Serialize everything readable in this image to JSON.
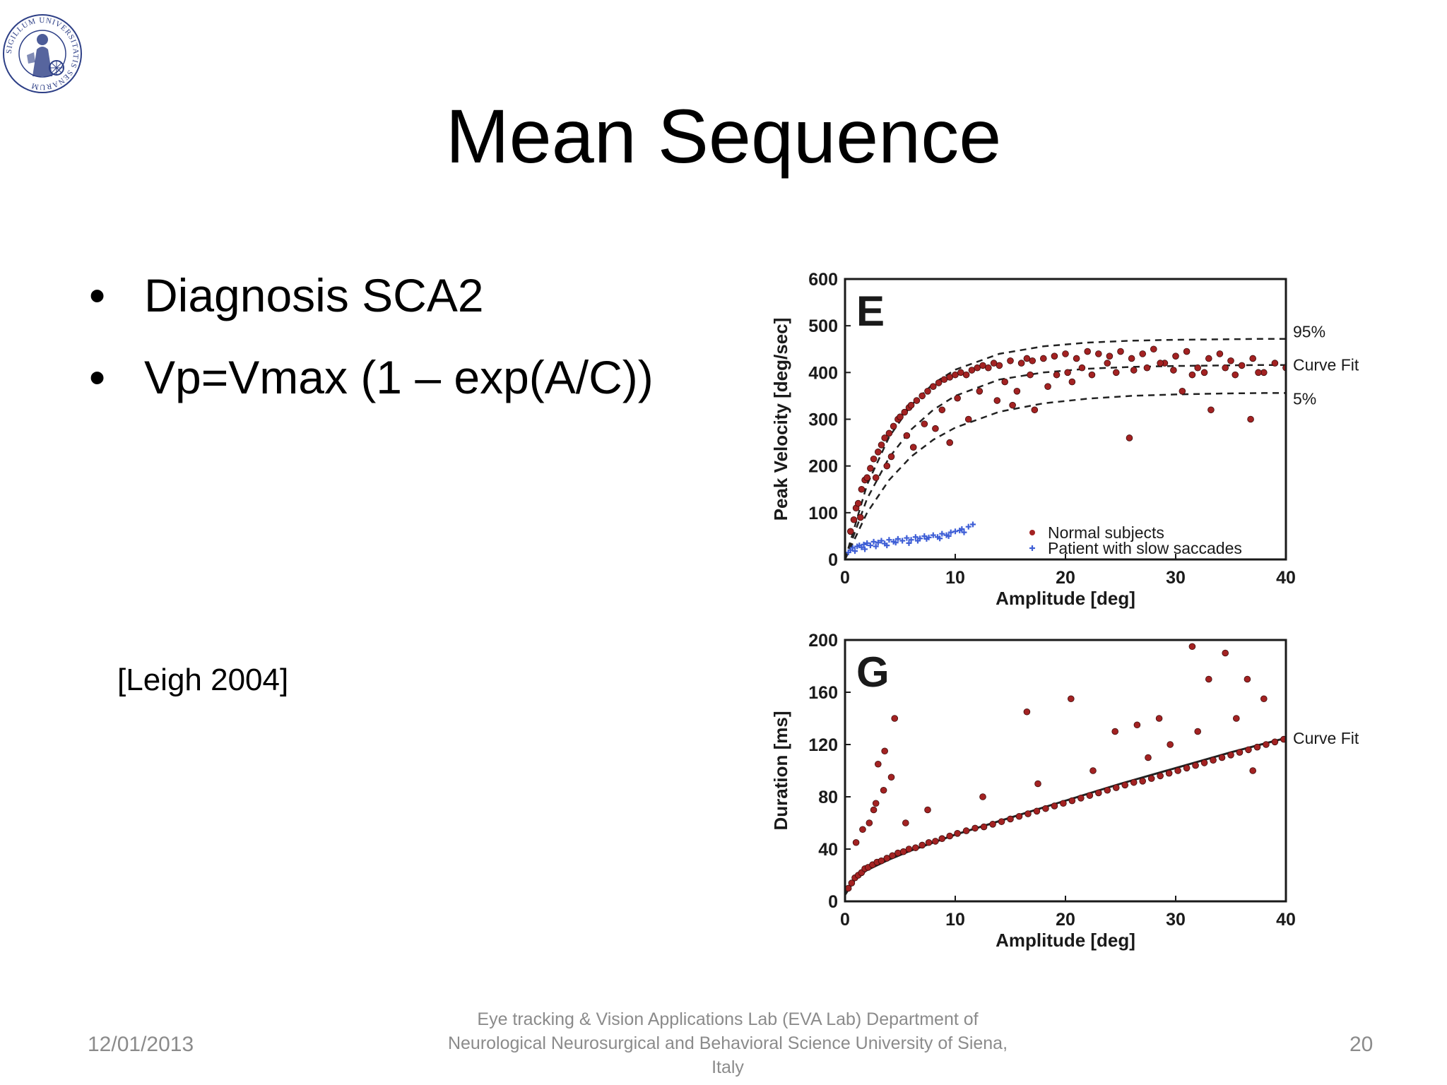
{
  "slide": {
    "title": "Mean Sequence",
    "bullets": [
      "Diagnosis SCA2",
      "Vp=Vmax (1 – exp(A/C))"
    ],
    "citation": "[Leigh 2004]"
  },
  "footer": {
    "date": "12/01/2013",
    "lab": "Eye tracking & Vision Applications Lab (EVA Lab) Department of Neurological Neurosurgical and Behavioral Science University of Siena, Italy",
    "page": "20"
  },
  "colors": {
    "normal_points": "#a32222",
    "patient_points": "#3f5fd6",
    "text": "#000000",
    "footer_text": "#8b8b8b"
  },
  "logo": {
    "icon": "university-seal-icon",
    "text": "SIGILLUM UNIVERSITATIS SENARUM"
  },
  "chart_data": [
    {
      "type": "scatter",
      "panel_label": "E",
      "xlabel": "Amplitude [deg]",
      "ylabel": "Peak Velocity [deg/sec]",
      "xlim": [
        0,
        40
      ],
      "ylim": [
        0,
        600
      ],
      "xticks": [
        0,
        10,
        20,
        30,
        40
      ],
      "yticks": [
        0,
        100,
        200,
        300,
        400,
        500,
        600
      ],
      "grid": false,
      "legend_position": "bottom-right",
      "curves": [
        {
          "label": "95%",
          "style": "dashed",
          "x": [
            0,
            2,
            4,
            6,
            8,
            10,
            14,
            18,
            22,
            26,
            30,
            34,
            38,
            40
          ],
          "y": [
            0,
            160,
            262,
            330,
            376,
            406,
            440,
            456,
            464,
            468,
            470,
            471,
            472,
            472
          ]
        },
        {
          "label": "Curve Fit",
          "style": "dashed",
          "x": [
            0,
            2,
            4,
            6,
            8,
            10,
            14,
            18,
            22,
            26,
            30,
            34,
            38,
            40
          ],
          "y": [
            0,
            130,
            218,
            278,
            320,
            350,
            385,
            400,
            408,
            412,
            414,
            415,
            416,
            416
          ]
        },
        {
          "label": "5%",
          "style": "dashed",
          "x": [
            0,
            2,
            4,
            6,
            8,
            10,
            14,
            18,
            22,
            26,
            30,
            34,
            38,
            40
          ],
          "y": [
            0,
            100,
            170,
            220,
            256,
            282,
            316,
            334,
            344,
            350,
            353,
            355,
            356,
            356
          ]
        }
      ],
      "series": [
        {
          "name": "Normal subjects",
          "marker": "filled-circle",
          "x": [
            0.5,
            0.8,
            1,
            1.2,
            1.5,
            1.8,
            2,
            2.3,
            2.6,
            3,
            3.3,
            3.6,
            4,
            4.4,
            4.8,
            5,
            5.4,
            5.8,
            6,
            6.5,
            7,
            7.5,
            8,
            8.5,
            9,
            9.5,
            10,
            10.5,
            11,
            11.5,
            12,
            12.5,
            13,
            13.5,
            14,
            15,
            16,
            16.5,
            17,
            18,
            19,
            20,
            21,
            22,
            23,
            24,
            25,
            26,
            27,
            28,
            29,
            30,
            31,
            32,
            33,
            34,
            35,
            36,
            37,
            38,
            39,
            40,
            1.4,
            2.8,
            4.2,
            5.6,
            7.2,
            8.8,
            10.2,
            12.2,
            14.5,
            16.8,
            19.2,
            21.5,
            23.8,
            26.2,
            28.6,
            31.5,
            34.5,
            37.5,
            9.5,
            11.2,
            13.8,
            15.6,
            18.4,
            20.6,
            22.4,
            24.6,
            27.4,
            29.8,
            32.6,
            35.4,
            3.8,
            6.2,
            8.2,
            17.2,
            25.8,
            33.2,
            36.8,
            15.2,
            20.2,
            30.6
          ],
          "y": [
            60,
            85,
            110,
            120,
            150,
            170,
            175,
            195,
            215,
            230,
            245,
            260,
            270,
            285,
            300,
            305,
            315,
            325,
            330,
            340,
            350,
            360,
            370,
            378,
            385,
            390,
            395,
            400,
            395,
            405,
            410,
            415,
            410,
            420,
            415,
            425,
            420,
            430,
            425,
            430,
            435,
            440,
            430,
            445,
            440,
            435,
            445,
            430,
            440,
            450,
            420,
            435,
            445,
            410,
            430,
            440,
            425,
            415,
            430,
            400,
            420,
            410,
            90,
            175,
            220,
            265,
            290,
            320,
            345,
            360,
            380,
            395,
            395,
            410,
            420,
            405,
            420,
            395,
            410,
            400,
            250,
            300,
            340,
            360,
            370,
            380,
            395,
            400,
            410,
            405,
            400,
            395,
            200,
            240,
            280,
            320,
            260,
            320,
            300,
            330,
            400,
            360
          ]
        },
        {
          "name": "Patient with slow saccades",
          "marker": "plus",
          "x": [
            0.3,
            0.5,
            0.7,
            0.9,
            1.1,
            1.3,
            1.5,
            1.7,
            2,
            2.3,
            2.6,
            3,
            3.3,
            3.6,
            4,
            4.4,
            4.8,
            5.2,
            5.6,
            6,
            6.4,
            6.8,
            7.2,
            7.6,
            8,
            8.4,
            8.8,
            9.2,
            9.6,
            10,
            10.4,
            10.8,
            11.2,
            11.6,
            1.8,
            2.8,
            3.8,
            4.6,
            5.8,
            6.6,
            7.4,
            8.6,
            9.4,
            10.6
          ],
          "y": [
            15,
            20,
            25,
            18,
            28,
            30,
            26,
            32,
            35,
            30,
            38,
            36,
            40,
            34,
            42,
            38,
            44,
            40,
            46,
            42,
            48,
            45,
            50,
            47,
            52,
            48,
            55,
            52,
            58,
            60,
            62,
            58,
            70,
            75,
            22,
            28,
            30,
            36,
            35,
            40,
            44,
            45,
            50,
            65
          ]
        }
      ]
    },
    {
      "type": "scatter",
      "panel_label": "G",
      "xlabel": "Amplitude [deg]",
      "ylabel": "Duration [ms]",
      "xlim": [
        0,
        40
      ],
      "ylim": [
        0,
        200
      ],
      "xticks": [
        0,
        10,
        20,
        30,
        40
      ],
      "yticks": [
        0,
        40,
        80,
        120,
        160,
        200
      ],
      "grid": false,
      "curves": [
        {
          "label": "Curve Fit",
          "style": "solid",
          "x": [
            0,
            1,
            2,
            4,
            6,
            8,
            10,
            15,
            20,
            25,
            30,
            35,
            40
          ],
          "y": [
            5,
            18,
            24,
            32,
            39,
            45,
            51,
            64,
            77,
            90,
            102,
            114,
            125
          ]
        }
      ],
      "series": [
        {
          "name": "Normal subjects",
          "marker": "filled-circle",
          "x": [
            0.3,
            0.6,
            0.9,
            1.2,
            1.5,
            1.8,
            2.1,
            2.5,
            2.9,
            3.3,
            3.8,
            4.3,
            4.8,
            5.3,
            5.8,
            6.4,
            7,
            7.6,
            8.2,
            8.8,
            9.5,
            10.2,
            11,
            11.8,
            12.6,
            13.4,
            14.2,
            15,
            15.8,
            16.6,
            17.4,
            18.2,
            19,
            19.8,
            20.6,
            21.4,
            22.2,
            23,
            23.8,
            24.6,
            25.4,
            26.2,
            27,
            27.8,
            28.6,
            29.4,
            30.2,
            31,
            31.8,
            32.6,
            33.4,
            34.2,
            35,
            35.8,
            36.6,
            37.4,
            38.2,
            39,
            39.8,
            1,
            1.6,
            2.2,
            2.8,
            3.5,
            4.2,
            3,
            3.6,
            4.5,
            2.6,
            16.5,
            20.5,
            24.5,
            26.5,
            28.5,
            31.5,
            33,
            34.5,
            36.5,
            38,
            5.5,
            7.5,
            12.5,
            17.5,
            22.5,
            27.5,
            29.5,
            32,
            35.5,
            37
          ],
          "y": [
            10,
            14,
            18,
            20,
            22,
            25,
            26,
            28,
            30,
            31,
            33,
            35,
            37,
            38,
            40,
            41,
            43,
            45,
            46,
            48,
            50,
            52,
            54,
            56,
            57,
            59,
            61,
            63,
            65,
            67,
            69,
            71,
            73,
            75,
            77,
            79,
            81,
            83,
            85,
            87,
            89,
            91,
            92,
            94,
            96,
            98,
            100,
            102,
            104,
            106,
            108,
            110,
            112,
            114,
            116,
            118,
            120,
            122,
            124,
            45,
            55,
            60,
            75,
            85,
            95,
            105,
            115,
            140,
            70,
            145,
            155,
            130,
            135,
            140,
            195,
            170,
            190,
            170,
            155,
            60,
            70,
            80,
            90,
            100,
            110,
            120,
            130,
            140,
            100
          ]
        }
      ]
    }
  ]
}
